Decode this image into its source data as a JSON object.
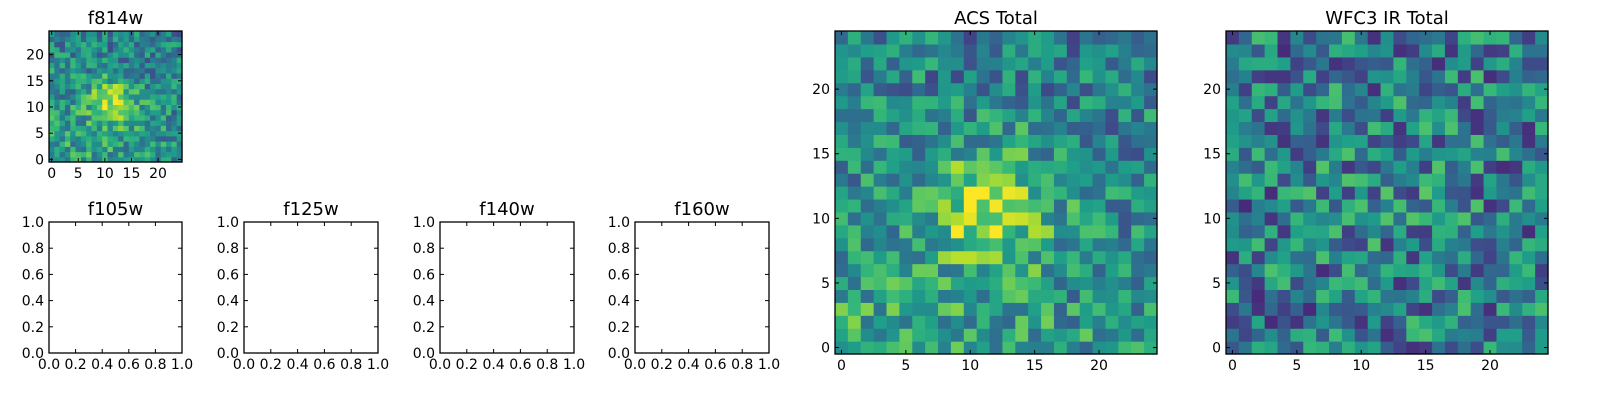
{
  "colormap": "viridis",
  "colors": {
    "axis": "#000000",
    "background": "#ffffff"
  },
  "chart_data": [
    {
      "id": "f814w",
      "type": "heatmap",
      "title": "f814w",
      "grid_size": 25,
      "blob": {
        "x": 11.5,
        "y": 11,
        "sigma": 3.2,
        "amp": 0.38
      },
      "gradient": 0.22,
      "noise": 0.22,
      "seed": 11,
      "xticks": [
        "0",
        "5",
        "10",
        "15",
        "20"
      ],
      "yticks": [
        "0",
        "5",
        "10",
        "15",
        "20"
      ]
    },
    {
      "id": "f105w",
      "type": "empty",
      "title": "f105w",
      "xticks": [
        "0.0",
        "0.2",
        "0.4",
        "0.6",
        "0.8",
        "1.0"
      ],
      "yticks": [
        "0.0",
        "0.2",
        "0.4",
        "0.6",
        "0.8",
        "1.0"
      ]
    },
    {
      "id": "f125w",
      "type": "empty",
      "title": "f125w",
      "xticks": [
        "0.0",
        "0.2",
        "0.4",
        "0.6",
        "0.8",
        "1.0"
      ],
      "yticks": [
        "0.0",
        "0.2",
        "0.4",
        "0.6",
        "0.8",
        "1.0"
      ]
    },
    {
      "id": "f140w",
      "type": "empty",
      "title": "f140w",
      "xticks": [
        "0.0",
        "0.2",
        "0.4",
        "0.6",
        "0.8",
        "1.0"
      ],
      "yticks": [
        "0.0",
        "0.2",
        "0.4",
        "0.6",
        "0.8",
        "1.0"
      ]
    },
    {
      "id": "f160w",
      "type": "empty",
      "title": "f160w",
      "xticks": [
        "0.0",
        "0.2",
        "0.4",
        "0.6",
        "0.8",
        "1.0"
      ],
      "yticks": [
        "0.0",
        "0.2",
        "0.4",
        "0.6",
        "0.8",
        "1.0"
      ]
    },
    {
      "id": "acs-total",
      "type": "heatmap",
      "title": "ACS Total",
      "grid_size": 25,
      "blob": {
        "x": 11.5,
        "y": 11,
        "sigma": 3.0,
        "amp": 0.42
      },
      "gradient": 0.25,
      "noise": 0.24,
      "seed": 23,
      "xticks": [
        "0",
        "5",
        "10",
        "15",
        "20"
      ],
      "yticks": [
        "0",
        "5",
        "10",
        "15",
        "20"
      ]
    },
    {
      "id": "wfc3-ir-total",
      "type": "heatmap",
      "title": "WFC3 IR Total",
      "grid_size": 25,
      "blob": {
        "x": 12,
        "y": 12,
        "sigma": 4,
        "amp": 0.05
      },
      "gradient": 0.0,
      "noise": 0.3,
      "seed": 57,
      "xticks": [
        "0",
        "5",
        "10",
        "15",
        "20"
      ],
      "yticks": [
        "0",
        "5",
        "10",
        "15",
        "20"
      ]
    }
  ]
}
